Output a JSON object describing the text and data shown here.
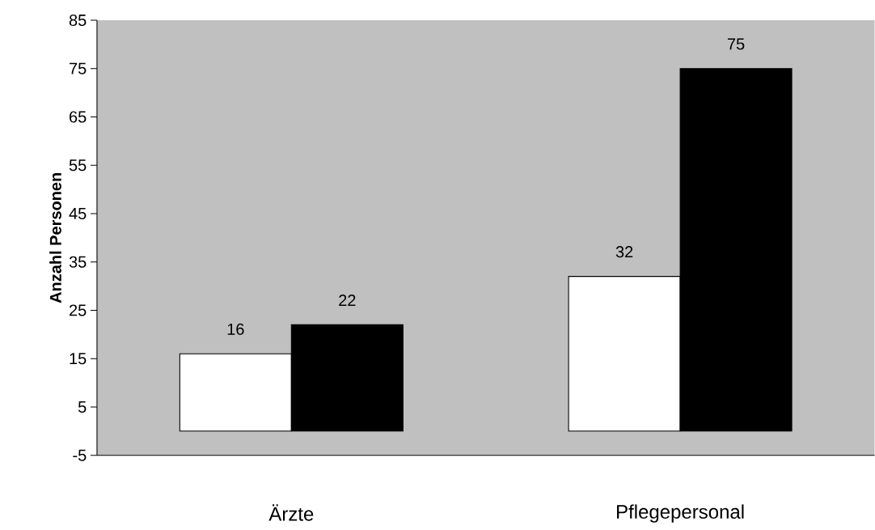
{
  "chart_data": {
    "type": "bar",
    "ylabel": "Anzahl Personen",
    "categories": [
      "Ärzte",
      "Pflegepersonal"
    ],
    "series": [
      {
        "color": "#ffffff",
        "values": [
          16,
          32
        ]
      },
      {
        "color": "#000000",
        "values": [
          22,
          75
        ]
      }
    ],
    "ylim": [
      -5,
      85
    ],
    "yticks": [
      -5,
      5,
      15,
      25,
      35,
      45,
      55,
      65,
      75,
      85
    ],
    "data_labels": true,
    "grid": false
  }
}
